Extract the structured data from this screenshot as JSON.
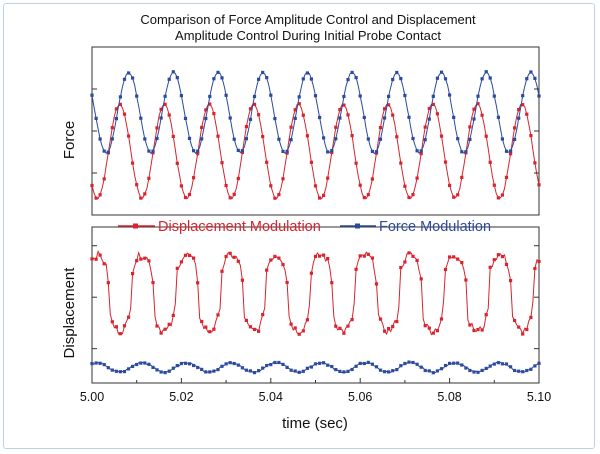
{
  "chart_data": {
    "type": "line",
    "title": [
      "Comparison of Force Amplitude Control and Displacement",
      "Amplitude Control During Initial Probe Contact"
    ],
    "xlabel": "time (sec)",
    "xlim": [
      5.0,
      5.1
    ],
    "xticks": [
      "5.00",
      "5.02",
      "5.04",
      "5.06",
      "5.08",
      "5.10"
    ],
    "colors": {
      "displacement": "#d9232e",
      "force": "#2c4a9e",
      "frame": "#b9d3e6"
    },
    "legend": {
      "placement": "top",
      "entries": [
        "Displacement Modulation",
        "Force Modulation"
      ]
    },
    "panels": [
      {
        "ylabel": "Force",
        "ylim": [
          0,
          1
        ],
        "series": [
          {
            "name": "Displacement Modulation",
            "key": "displacement",
            "period": 0.01,
            "phase": 5.0062,
            "center": 0.38,
            "amplitude": 0.28,
            "shape": "sine",
            "noise": 0.01
          },
          {
            "name": "Force Modulation",
            "key": "force",
            "period": 0.01,
            "phase": 5.0082,
            "center": 0.61,
            "amplitude": 0.24,
            "shape": "sine",
            "noise": 0.01
          }
        ]
      },
      {
        "ylabel": "Displacement",
        "ylim": [
          0,
          1
        ],
        "series": [
          {
            "name": "Displacement Modulation",
            "key": "displacement",
            "period": 0.01,
            "phase": 5.0012,
            "center": 0.55,
            "amplitude": 0.27,
            "shape": "pulse",
            "noise": 0.05
          },
          {
            "name": "Force Modulation",
            "key": "force",
            "period": 0.01,
            "phase": 5.0012,
            "center": 0.1,
            "amplitude": 0.03,
            "shape": "sine",
            "noise": 0.01
          }
        ]
      }
    ]
  }
}
